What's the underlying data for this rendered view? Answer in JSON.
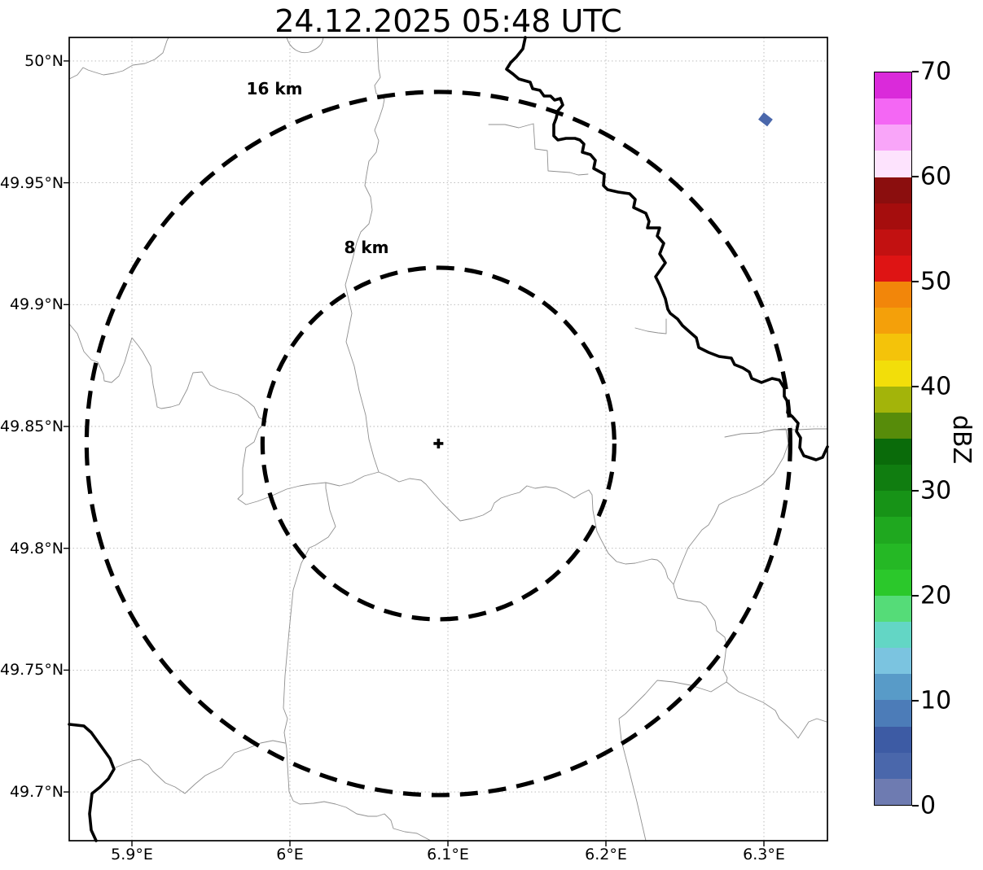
{
  "title": "24.12.2025 05:48 UTC",
  "map": {
    "x_ticks": [
      {
        "label": "5.9°E",
        "lon": 5.9
      },
      {
        "label": "6°E",
        "lon": 6.0
      },
      {
        "label": "6.1°E",
        "lon": 6.1
      },
      {
        "label": "6.2°E",
        "lon": 6.2
      },
      {
        "label": "6.3°E",
        "lon": 6.3
      }
    ],
    "y_ticks": [
      {
        "label": "50°N",
        "lat": 50.0
      },
      {
        "label": "49.95°N",
        "lat": 49.95
      },
      {
        "label": "49.9°N",
        "lat": 49.9
      },
      {
        "label": "49.85°N",
        "lat": 49.85
      },
      {
        "label": "49.8°N",
        "lat": 49.8
      },
      {
        "label": "49.75°N",
        "lat": 49.75
      },
      {
        "label": "49.7°N",
        "lat": 49.7
      }
    ],
    "rings": [
      {
        "label": "16 km",
        "km": 16
      },
      {
        "label": "8 km",
        "km": 8
      }
    ],
    "radar_site": {
      "lon": 6.094,
      "lat": 49.843
    }
  },
  "colorbar": {
    "label": "dBZ",
    "min": 0,
    "max": 70,
    "bin_width": 2.5,
    "ticks": [
      0,
      10,
      20,
      30,
      40,
      50,
      60,
      70
    ],
    "colors_bottom_to_top": [
      "#6E7BB1",
      "#4A67AB",
      "#3D5BA4",
      "#4C7CB8",
      "#589BC8",
      "#7BC4E0",
      "#63D6C5",
      "#55DC78",
      "#2BC82B",
      "#25B825",
      "#1FA81F",
      "#179317",
      "#107D10",
      "#0A6B0A",
      "#578C0A",
      "#A3B40A",
      "#F2DE0A",
      "#F4C30A",
      "#F4A00A",
      "#F2860A",
      "#DE1414",
      "#C21111",
      "#A50D0D",
      "#8B0E0E",
      "#FDE3FD",
      "#F9A5F9",
      "#F467F4",
      "#DA2ADA"
    ]
  },
  "chart_data": {
    "type": "heatmap",
    "title": "24.12.2025 05:48 UTC",
    "xlabel": "",
    "ylabel": "dBZ",
    "x_ticks_deg_e": [
      5.9,
      6.0,
      6.1,
      6.2,
      6.3
    ],
    "y_ticks_deg_n": [
      50.0,
      49.95,
      49.9,
      49.85,
      49.8,
      49.75,
      49.7
    ],
    "xlim_deg_e": [
      5.86,
      6.34
    ],
    "ylim_deg_n": [
      49.68,
      50.01
    ],
    "grid": true,
    "radar_site_deg": {
      "lon_e": 6.094,
      "lat_n": 49.843
    },
    "range_rings_km": [
      16,
      8
    ],
    "echoes": [
      {
        "lon_e": 6.301,
        "lat_n": 49.976,
        "dbz_bin": [
          2.5,
          5
        ]
      }
    ],
    "colorbar": {
      "label": "dBZ",
      "min": 0,
      "max": 70,
      "tick_step": 10,
      "bin_width_dbz": 2.5
    }
  }
}
